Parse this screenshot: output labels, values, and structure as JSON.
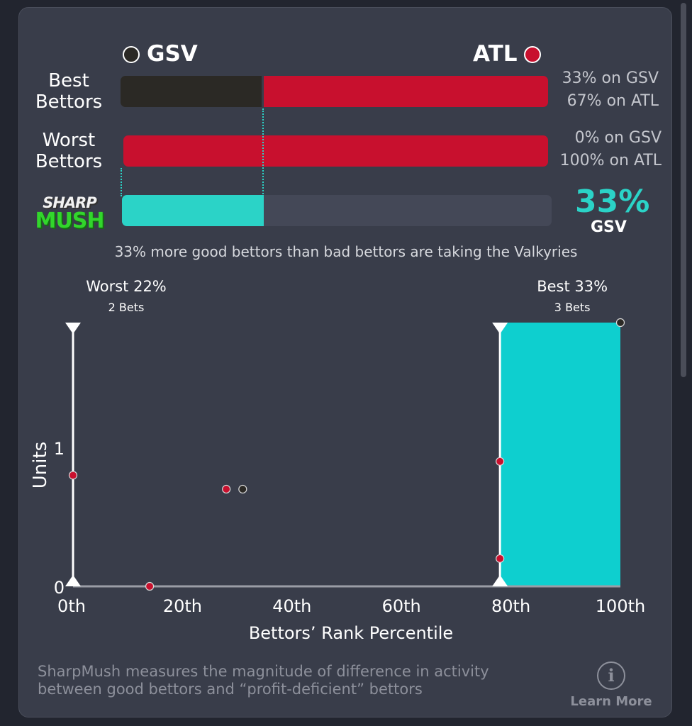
{
  "teams": {
    "left": {
      "name": "GSV",
      "color": "#2b2925"
    },
    "right": {
      "name": "ATL",
      "color": "#c8102e"
    }
  },
  "rows": [
    {
      "label": [
        "Best",
        "Bettors"
      ],
      "gsv_pct": 33,
      "atl_pct": 67,
      "stat_gsv": "33% on GSV",
      "stat_atl": "67% on ATL"
    },
    {
      "label": [
        "Worst",
        "Bettors"
      ],
      "gsv_pct": 0,
      "atl_pct": 100,
      "stat_gsv": "0% on GSV",
      "stat_atl": "100% on ATL"
    }
  ],
  "sharpmush": {
    "logo_top": "SHARP",
    "logo_bottom": "MUSH",
    "pct_value": 33,
    "pct_label": "33%",
    "team": "GSV",
    "color": "#2bd3c7"
  },
  "summary": "33% more good bettors than bad bettors are taking the Valkyries",
  "chart_data": {
    "type": "scatter",
    "xlabel": "Bettors’ Rank Percentile",
    "ylabel": "Units",
    "xlim": [
      0,
      100
    ],
    "ylim": [
      0,
      1.9
    ],
    "x_ticks": [
      0,
      20,
      40,
      60,
      80,
      100
    ],
    "x_tick_labels": [
      "0th",
      "20th",
      "40th",
      "60th",
      "80th",
      "100th"
    ],
    "y_ticks": [
      0,
      1
    ],
    "y_tick_labels": [
      "0",
      "1"
    ],
    "worst": {
      "label": "Worst 22%",
      "bets": "2 Bets",
      "x": 0
    },
    "best": {
      "label": "Best 33%",
      "bets": "3 Bets",
      "x": 78,
      "shade_color": "#0ecfcf"
    },
    "points": [
      {
        "x": 0,
        "y": 0.8,
        "team": "ATL"
      },
      {
        "x": 14,
        "y": 0,
        "team": "ATL"
      },
      {
        "x": 28,
        "y": 0.7,
        "team": "ATL"
      },
      {
        "x": 31,
        "y": 0.7,
        "team": "GSV"
      },
      {
        "x": 78,
        "y": 0.9,
        "team": "ATL"
      },
      {
        "x": 78,
        "y": 0.2,
        "team": "ATL"
      },
      {
        "x": 100,
        "y": 1.9,
        "team": "GSV"
      }
    ]
  },
  "footer": {
    "text_line1": "SharpMush measures the magnitude of difference in activity",
    "text_line2": "between good bettors and “profit-deficient” bettors",
    "learn_icon": "info-icon",
    "learn_more": "Learn More"
  }
}
